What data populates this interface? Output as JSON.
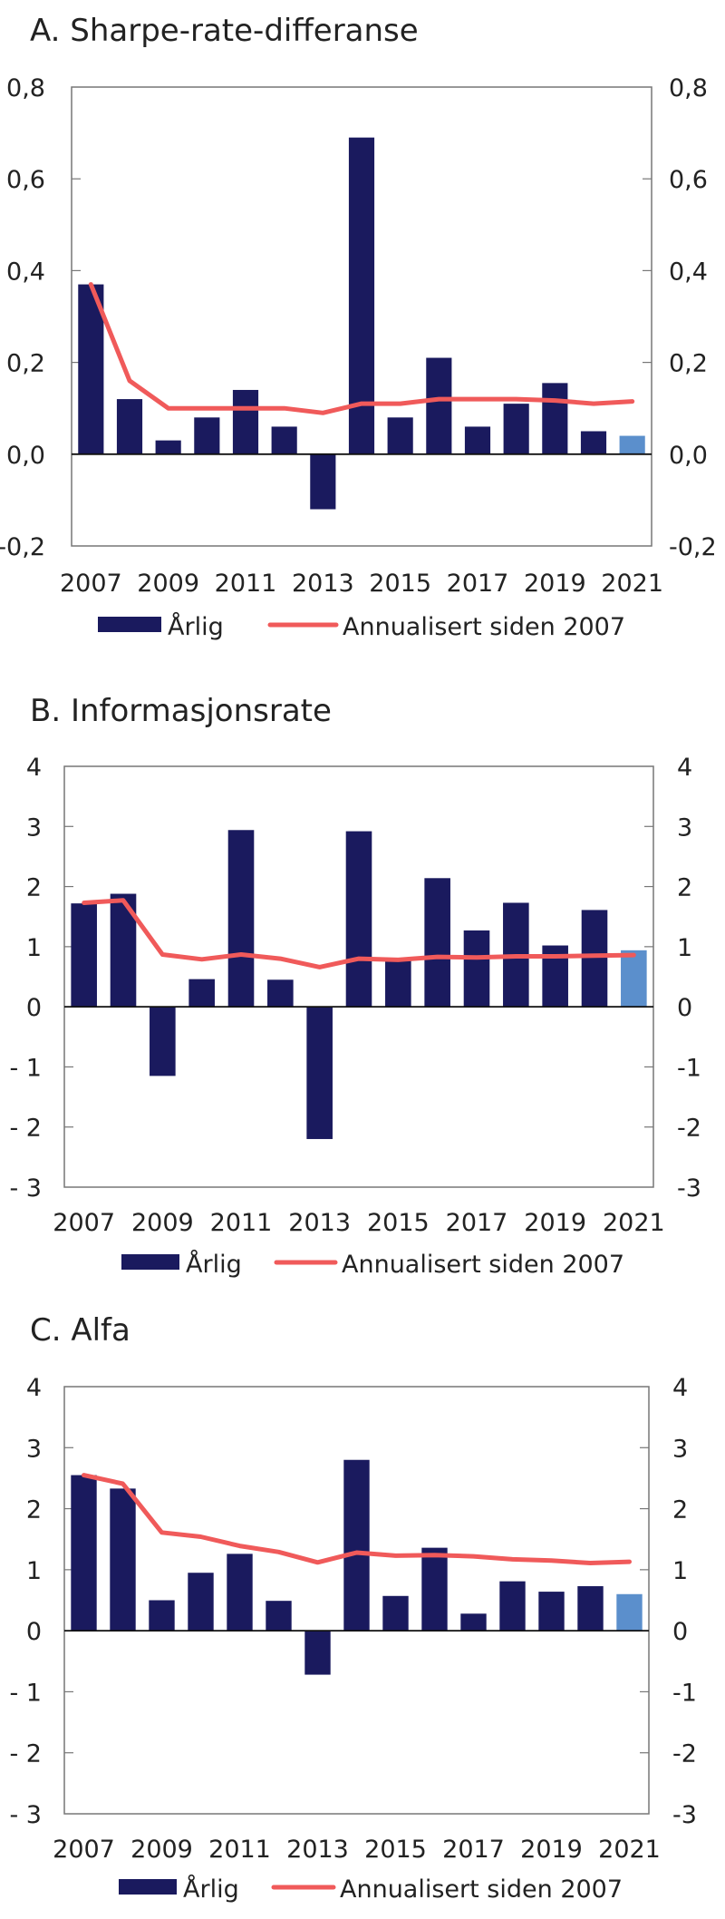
{
  "colors": {
    "bar": "#1a1a5e",
    "bar_highlight": "#5b8fcc",
    "line": "#f05a5a",
    "axis": "#777777"
  },
  "chart_data": [
    {
      "type": "bar",
      "title": "A.  Sharpe-rate-differanse",
      "categories": [
        "2007",
        "2008",
        "2009",
        "2010",
        "2011",
        "2012",
        "2013",
        "2014",
        "2015",
        "2016",
        "2017",
        "2018",
        "2019",
        "2020",
        "2021"
      ],
      "x_tick_labels": [
        "2007",
        "2009",
        "2011",
        "2013",
        "2015",
        "2017",
        "2019",
        "2021"
      ],
      "ylim": [
        -0.2,
        0.8
      ],
      "y_ticks": [
        0.8,
        0.6,
        0.4,
        0.2,
        0.0,
        -0.2
      ],
      "y_tick_labels_left": [
        "0,8",
        "0,6",
        "0,4",
        "0,2",
        "0,0",
        "-0,2"
      ],
      "y_tick_labels_right": [
        "0,8",
        "0,6",
        "0,4",
        "0,2",
        "0,0",
        "-0,2"
      ],
      "series": [
        {
          "name": "Årlig",
          "type": "bar",
          "values": [
            0.37,
            0.12,
            0.03,
            0.08,
            0.14,
            0.06,
            -0.12,
            0.69,
            0.08,
            0.21,
            0.06,
            0.11,
            0.155,
            0.05,
            0.04
          ],
          "highlight_last": true
        },
        {
          "name": "Annualisert siden 2007",
          "type": "line",
          "values": [
            0.37,
            0.16,
            0.1,
            0.1,
            0.1,
            0.1,
            0.09,
            0.11,
            0.11,
            0.12,
            0.12,
            0.12,
            0.117,
            0.11,
            0.115
          ]
        }
      ],
      "legend": [
        "Årlig",
        "Annualisert siden 2007"
      ],
      "legend_position": "bottom"
    },
    {
      "type": "bar",
      "title": "B.  Informasjonsrate",
      "categories": [
        "2007",
        "2008",
        "2009",
        "2010",
        "2011",
        "2012",
        "2013",
        "2014",
        "2015",
        "2016",
        "2017",
        "2018",
        "2019",
        "2020",
        "2021"
      ],
      "x_tick_labels": [
        "2007",
        "2009",
        "2011",
        "2013",
        "2015",
        "2017",
        "2019",
        "2021"
      ],
      "ylim": [
        -3,
        4
      ],
      "y_ticks": [
        4,
        3,
        2,
        1,
        0,
        -1,
        -2,
        -3
      ],
      "y_tick_labels_left": [
        "4",
        "3",
        "2",
        "1",
        "0",
        "- 1",
        "- 2",
        "- 3"
      ],
      "y_tick_labels_right": [
        "4",
        "3",
        "2",
        "1",
        "0",
        "-1",
        "-2",
        "-3"
      ],
      "series": [
        {
          "name": "Årlig",
          "type": "bar",
          "values": [
            1.72,
            1.88,
            -1.15,
            0.46,
            2.94,
            0.45,
            -2.2,
            2.92,
            0.78,
            2.14,
            1.27,
            1.73,
            1.02,
            1.61,
            0.94
          ],
          "highlight_last": true
        },
        {
          "name": "Annualisert siden 2007",
          "type": "line",
          "values": [
            1.73,
            1.77,
            0.87,
            0.79,
            0.87,
            0.8,
            0.66,
            0.8,
            0.78,
            0.83,
            0.82,
            0.84,
            0.84,
            0.85,
            0.86
          ]
        }
      ],
      "legend": [
        "Årlig",
        "Annualisert siden 2007"
      ],
      "legend_position": "bottom"
    },
    {
      "type": "bar",
      "title": "C.  Alfa",
      "categories": [
        "2007",
        "2008",
        "2009",
        "2010",
        "2011",
        "2012",
        "2013",
        "2014",
        "2015",
        "2016",
        "2017",
        "2018",
        "2019",
        "2020",
        "2021"
      ],
      "x_tick_labels": [
        "2007",
        "2009",
        "2011",
        "2013",
        "2015",
        "2017",
        "2019",
        "2021"
      ],
      "ylim": [
        -3,
        4
      ],
      "y_ticks": [
        4,
        3,
        2,
        1,
        0,
        -1,
        -2,
        -3
      ],
      "y_tick_labels_left": [
        "4",
        "3",
        "2",
        "1",
        "0",
        "- 1",
        "- 2",
        "- 3"
      ],
      "y_tick_labels_right": [
        "4",
        "3",
        "2",
        "1",
        "0",
        "-1",
        "-2",
        "-3"
      ],
      "series": [
        {
          "name": "Årlig",
          "type": "bar",
          "values": [
            2.55,
            2.33,
            0.5,
            0.95,
            1.26,
            0.49,
            -0.72,
            2.8,
            0.57,
            1.36,
            0.28,
            0.81,
            0.64,
            0.73,
            0.6
          ],
          "highlight_last": true
        },
        {
          "name": "Annualisert siden 2007",
          "type": "line",
          "values": [
            2.55,
            2.41,
            1.61,
            1.54,
            1.39,
            1.29,
            1.12,
            1.28,
            1.23,
            1.24,
            1.22,
            1.17,
            1.15,
            1.11,
            1.13
          ]
        }
      ],
      "legend": [
        "Årlig",
        "Annualisert siden 2007"
      ],
      "legend_position": "bottom"
    }
  ]
}
